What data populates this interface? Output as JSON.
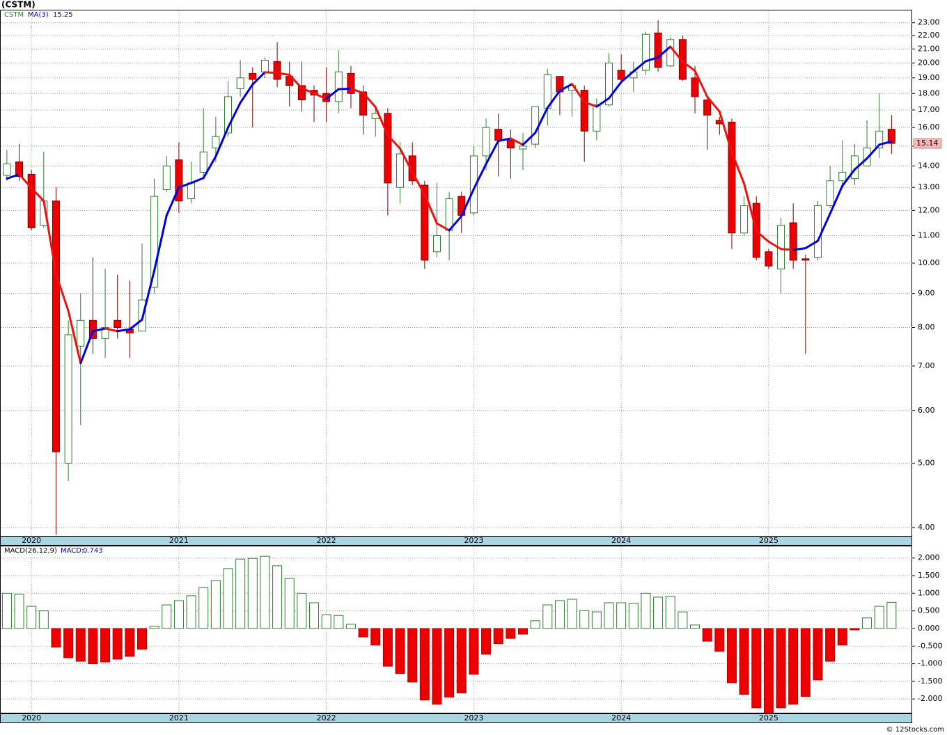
{
  "title": "(CSTM)",
  "footer": "© 12Stocks.com",
  "chart_data": [
    {
      "type": "candlestick",
      "ticker_label": "CSTM",
      "categories": [
        null,
        null,
        "2020",
        null,
        null,
        null,
        null,
        null,
        null,
        null,
        null,
        null,
        null,
        null,
        "2021",
        null,
        null,
        null,
        null,
        null,
        null,
        null,
        null,
        null,
        null,
        null,
        "2022",
        null,
        null,
        null,
        null,
        null,
        null,
        null,
        null,
        null,
        null,
        null,
        "2023",
        null,
        null,
        null,
        null,
        null,
        null,
        null,
        null,
        null,
        null,
        null,
        "2024",
        null,
        null,
        null,
        null,
        null,
        null,
        null,
        null,
        null,
        null,
        null,
        "2025",
        null,
        null,
        null,
        null,
        null,
        null,
        null,
        null,
        null,
        null
      ],
      "open": [
        13.55,
        14.2,
        13.6,
        11.4,
        12.4,
        5.0,
        7.5,
        8.2,
        7.7,
        8.2,
        7.95,
        7.9,
        9.2,
        12.9,
        14.3,
        12.5,
        13.7,
        14.9,
        15.7,
        18.3,
        19.3,
        19.4,
        20.1,
        19.1,
        18.5,
        18.2,
        18.0,
        17.5,
        19.3,
        18.1,
        16.5,
        16.8,
        13.0,
        14.5,
        13.1,
        10.4,
        11.2,
        12.6,
        11.9,
        14.5,
        15.9,
        15.3,
        14.85,
        15.1,
        17.1,
        19.1,
        18.2,
        18.2,
        15.8,
        17.3,
        19.5,
        19.0,
        19.5,
        22.2,
        19.8,
        21.7,
        19.0,
        17.6,
        16.4,
        16.3,
        11.1,
        12.3,
        10.4,
        9.8,
        11.5,
        10.15,
        10.2,
        12.2,
        13.3,
        13.4,
        14.0,
        14.9,
        15.9
      ],
      "high": [
        14.8,
        15.1,
        13.8,
        14.7,
        13.0,
        8.2,
        9.0,
        10.2,
        9.8,
        9.6,
        9.4,
        10.7,
        13.4,
        14.5,
        15.2,
        14.2,
        17.1,
        16.6,
        18.8,
        20.2,
        19.7,
        20.4,
        21.5,
        20.1,
        20.1,
        18.5,
        19.7,
        20.9,
        19.8,
        18.5,
        17.2,
        17.1,
        15.2,
        15.2,
        13.3,
        13.2,
        12.8,
        12.8,
        15.0,
        16.5,
        16.8,
        15.9,
        15.7,
        17.2,
        19.6,
        19.1,
        18.6,
        18.5,
        17.7,
        20.7,
        20.6,
        20.1,
        22.3,
        23.2,
        21.9,
        22.0,
        19.8,
        17.7,
        16.6,
        16.5,
        12.6,
        12.6,
        10.5,
        11.7,
        12.3,
        10.3,
        12.4,
        14.0,
        15.3,
        15.1,
        16.4,
        18.0,
        16.7
      ],
      "low": [
        13.3,
        13.3,
        11.2,
        11.3,
        3.9,
        4.7,
        5.7,
        7.3,
        7.2,
        7.7,
        7.2,
        7.9,
        9.0,
        12.8,
        11.9,
        12.3,
        13.5,
        14.2,
        15.5,
        17.8,
        16.0,
        19.0,
        18.4,
        17.2,
        16.9,
        16.3,
        16.3,
        16.8,
        17.1,
        15.6,
        15.5,
        11.8,
        12.3,
        13.1,
        9.8,
        10.2,
        10.1,
        11.1,
        11.8,
        13.8,
        13.5,
        13.4,
        13.8,
        14.9,
        16.1,
        16.7,
        16.6,
        14.2,
        15.3,
        17.2,
        18.8,
        18.1,
        19.2,
        19.4,
        19.7,
        18.8,
        16.8,
        14.8,
        15.6,
        10.5,
        11.0,
        10.1,
        9.8,
        9.0,
        9.8,
        7.3,
        10.1,
        12.1,
        13.1,
        13.1,
        14.0,
        14.4,
        14.6
      ],
      "close": [
        14.1,
        13.5,
        11.3,
        12.4,
        5.2,
        7.8,
        8.2,
        7.7,
        8.0,
        8.0,
        7.85,
        8.8,
        12.6,
        14.0,
        12.4,
        13.2,
        14.7,
        15.5,
        17.8,
        19.0,
        18.9,
        20.2,
        18.9,
        18.5,
        17.6,
        17.9,
        17.5,
        19.4,
        18.0,
        16.7,
        16.8,
        13.2,
        14.6,
        13.3,
        10.1,
        11.0,
        12.5,
        11.8,
        14.5,
        16.0,
        15.3,
        14.9,
        15.0,
        17.2,
        19.2,
        18.1,
        18.5,
        15.8,
        17.3,
        20.0,
        18.9,
        19.4,
        22.1,
        19.7,
        21.7,
        18.9,
        17.8,
        16.7,
        16.2,
        11.1,
        12.2,
        10.2,
        9.9,
        11.4,
        10.1,
        10.1,
        12.2,
        13.3,
        13.7,
        14.5,
        14.9,
        15.8,
        15.14
      ],
      "up_color": "#2e7d32",
      "down_color": "#ee0000",
      "series": [
        {
          "name": "MA(3)",
          "up_color": "#0000dd",
          "down_color": "#ee1111",
          "values": [
            13.4,
            13.6,
            12.97,
            12.4,
            9.63,
            8.47,
            7.07,
            7.9,
            7.97,
            7.9,
            7.95,
            8.22,
            9.75,
            11.8,
            13.0,
            13.2,
            13.43,
            14.47,
            16.0,
            17.43,
            18.57,
            19.37,
            19.33,
            19.2,
            18.33,
            18.0,
            17.67,
            18.27,
            18.3,
            18.03,
            17.17,
            15.57,
            14.87,
            13.7,
            12.67,
            11.47,
            11.2,
            11.77,
            12.93,
            14.1,
            15.27,
            15.4,
            15.07,
            15.7,
            17.13,
            18.17,
            18.6,
            17.47,
            17.2,
            17.7,
            18.73,
            19.43,
            20.13,
            20.4,
            21.17,
            20.1,
            19.47,
            17.8,
            16.9,
            14.67,
            13.17,
            11.17,
            10.77,
            10.5,
            10.47,
            10.53,
            10.8,
            11.87,
            13.07,
            13.83,
            14.37,
            15.07,
            15.25
          ]
        }
      ],
      "ylim": [
        3.885,
        24.0
      ],
      "log_scale": true,
      "grid": true,
      "yticks": [
        {
          "value": 4,
          "label": "4.00"
        },
        {
          "value": 5,
          "label": "5.00"
        },
        {
          "value": 6,
          "label": "6.00"
        },
        {
          "value": 7,
          "label": "7.00"
        },
        {
          "value": 8,
          "label": "8.00"
        },
        {
          "value": 9,
          "label": "9.00"
        },
        {
          "value": 10,
          "label": "10.00"
        },
        {
          "value": 11,
          "label": "11.00"
        },
        {
          "value": 12,
          "label": "12.00"
        },
        {
          "value": 13,
          "label": "13.00"
        },
        {
          "value": 14,
          "label": "14.00"
        },
        {
          "value": 15,
          "label": "15.00"
        },
        {
          "value": 16,
          "label": "16.00"
        },
        {
          "value": 17,
          "label": "17.00"
        },
        {
          "value": 18,
          "label": "18.00"
        },
        {
          "value": 19,
          "label": "19.00"
        },
        {
          "value": 20,
          "label": "20.00"
        },
        {
          "value": 21,
          "label": "21.00"
        },
        {
          "value": 22,
          "label": "22.00"
        },
        {
          "value": 23,
          "label": "23.00"
        }
      ]
    },
    {
      "type": "bar",
      "title": "MACD(26,12,9)",
      "value_prefix": "MACD:",
      "categories": [
        null,
        null,
        "2020",
        null,
        null,
        null,
        null,
        null,
        null,
        null,
        null,
        null,
        null,
        null,
        "2021",
        null,
        null,
        null,
        null,
        null,
        null,
        null,
        null,
        null,
        null,
        null,
        "2022",
        null,
        null,
        null,
        null,
        null,
        null,
        null,
        null,
        null,
        null,
        null,
        "2023",
        null,
        null,
        null,
        null,
        null,
        null,
        null,
        null,
        null,
        null,
        null,
        "2024",
        null,
        null,
        null,
        null,
        null,
        null,
        null,
        null,
        null,
        null,
        null,
        "2025",
        null,
        null,
        null,
        null,
        null,
        null,
        null,
        null,
        null,
        null
      ],
      "values": [
        1.0,
        0.97,
        0.63,
        0.5,
        -0.53,
        -0.83,
        -0.93,
        -1.0,
        -0.95,
        -0.87,
        -0.79,
        -0.59,
        0.06,
        0.67,
        0.79,
        0.93,
        1.16,
        1.36,
        1.7,
        1.97,
        1.99,
        2.05,
        1.78,
        1.42,
        1.0,
        0.73,
        0.39,
        0.37,
        0.12,
        -0.24,
        -0.47,
        -1.07,
        -1.28,
        -1.52,
        -2.03,
        -2.15,
        -1.95,
        -1.83,
        -1.3,
        -0.73,
        -0.43,
        -0.28,
        -0.16,
        0.22,
        0.67,
        0.79,
        0.83,
        0.51,
        0.47,
        0.73,
        0.73,
        0.71,
        1.0,
        0.89,
        0.91,
        0.47,
        0.1,
        -0.36,
        -0.65,
        -1.54,
        -1.87,
        -2.25,
        -2.4,
        -2.25,
        -2.15,
        -1.93,
        -1.46,
        -0.93,
        -0.47,
        -0.04,
        0.3,
        0.63,
        0.743
      ],
      "pos_color": "#2e7d32",
      "neg_color": "#ee0000",
      "ylim": [
        -2.41,
        2.33
      ],
      "grid": true,
      "yticks": [
        {
          "value": 2,
          "label": "2.000"
        },
        {
          "value": 1.5,
          "label": "1.500"
        },
        {
          "value": 1,
          "label": "1.000"
        },
        {
          "value": 0.5,
          "label": "0.500"
        },
        {
          "value": 0,
          "label": "0.000"
        },
        {
          "value": -0.5,
          "label": "-0.500"
        },
        {
          "value": -1,
          "label": "-1.000"
        },
        {
          "value": -1.5,
          "label": "-1.500"
        },
        {
          "value": -2,
          "label": "-2.000"
        }
      ]
    }
  ]
}
